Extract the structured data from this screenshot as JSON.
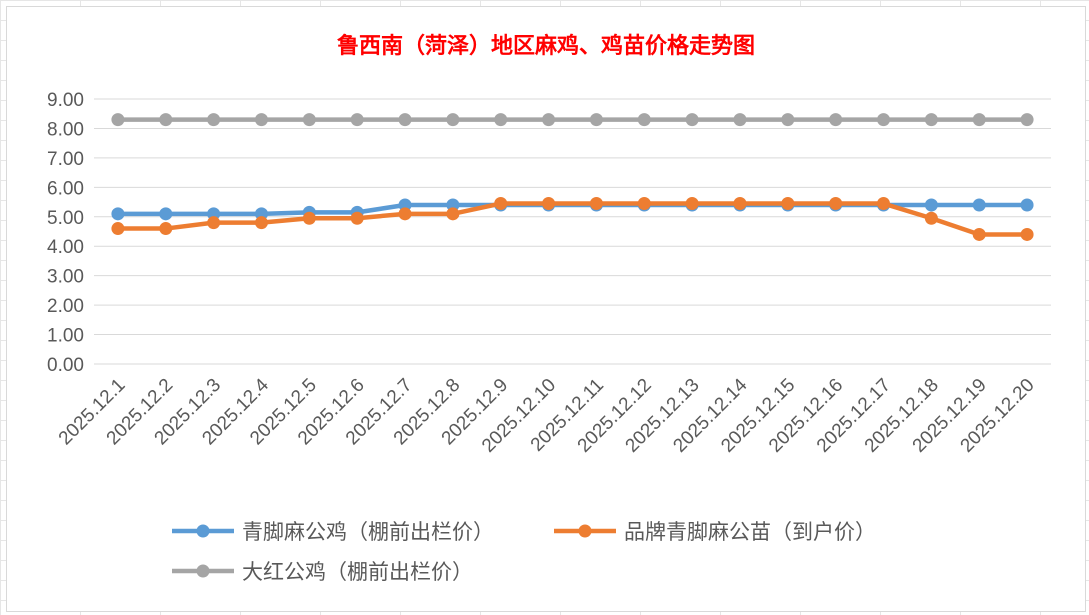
{
  "chart_data": {
    "type": "line",
    "title": "鲁西南（菏泽）地区麻鸡、鸡苗价格走势图",
    "xlabel": "",
    "ylabel": "",
    "ylim": [
      0,
      9
    ],
    "yticks": [
      "0.00",
      "1.00",
      "2.00",
      "3.00",
      "4.00",
      "5.00",
      "6.00",
      "7.00",
      "8.00",
      "9.00"
    ],
    "categories": [
      "2025.12.1",
      "2025.12.2",
      "2025.12.3",
      "2025.12.4",
      "2025.12.5",
      "2025.12.6",
      "2025.12.7",
      "2025.12.8",
      "2025.12.9",
      "2025.12.10",
      "2025.12.11",
      "2025.12.12",
      "2025.12.13",
      "2025.12.14",
      "2025.12.15",
      "2025.12.16",
      "2025.12.17",
      "2025.12.18",
      "2025.12.19",
      "2025.12.20"
    ],
    "grid": true,
    "legend_position": "bottom",
    "series": [
      {
        "name": "青脚麻公鸡（棚前出栏价）",
        "color": "#5b9bd5",
        "values": [
          5.1,
          5.1,
          5.1,
          5.1,
          5.15,
          5.15,
          5.4,
          5.4,
          5.4,
          5.4,
          5.4,
          5.4,
          5.4,
          5.4,
          5.4,
          5.4,
          5.4,
          5.4,
          5.4,
          5.4
        ]
      },
      {
        "name": "品牌青脚麻公苗（到户价）",
        "color": "#ed7d31",
        "values": [
          4.6,
          4.6,
          4.8,
          4.8,
          4.95,
          4.95,
          5.1,
          5.1,
          5.45,
          5.45,
          5.45,
          5.45,
          5.45,
          5.45,
          5.45,
          5.45,
          5.45,
          4.95,
          4.4,
          4.4
        ]
      },
      {
        "name": "大红公鸡（棚前出栏价）",
        "color": "#a5a5a5",
        "values": [
          8.3,
          8.3,
          8.3,
          8.3,
          8.3,
          8.3,
          8.3,
          8.3,
          8.3,
          8.3,
          8.3,
          8.3,
          8.3,
          8.3,
          8.3,
          8.3,
          8.3,
          8.3,
          8.3,
          8.3
        ]
      }
    ]
  },
  "colors": {
    "title": "#ff0000",
    "axis_text": "#595959",
    "gridline": "#d9d9d9"
  }
}
